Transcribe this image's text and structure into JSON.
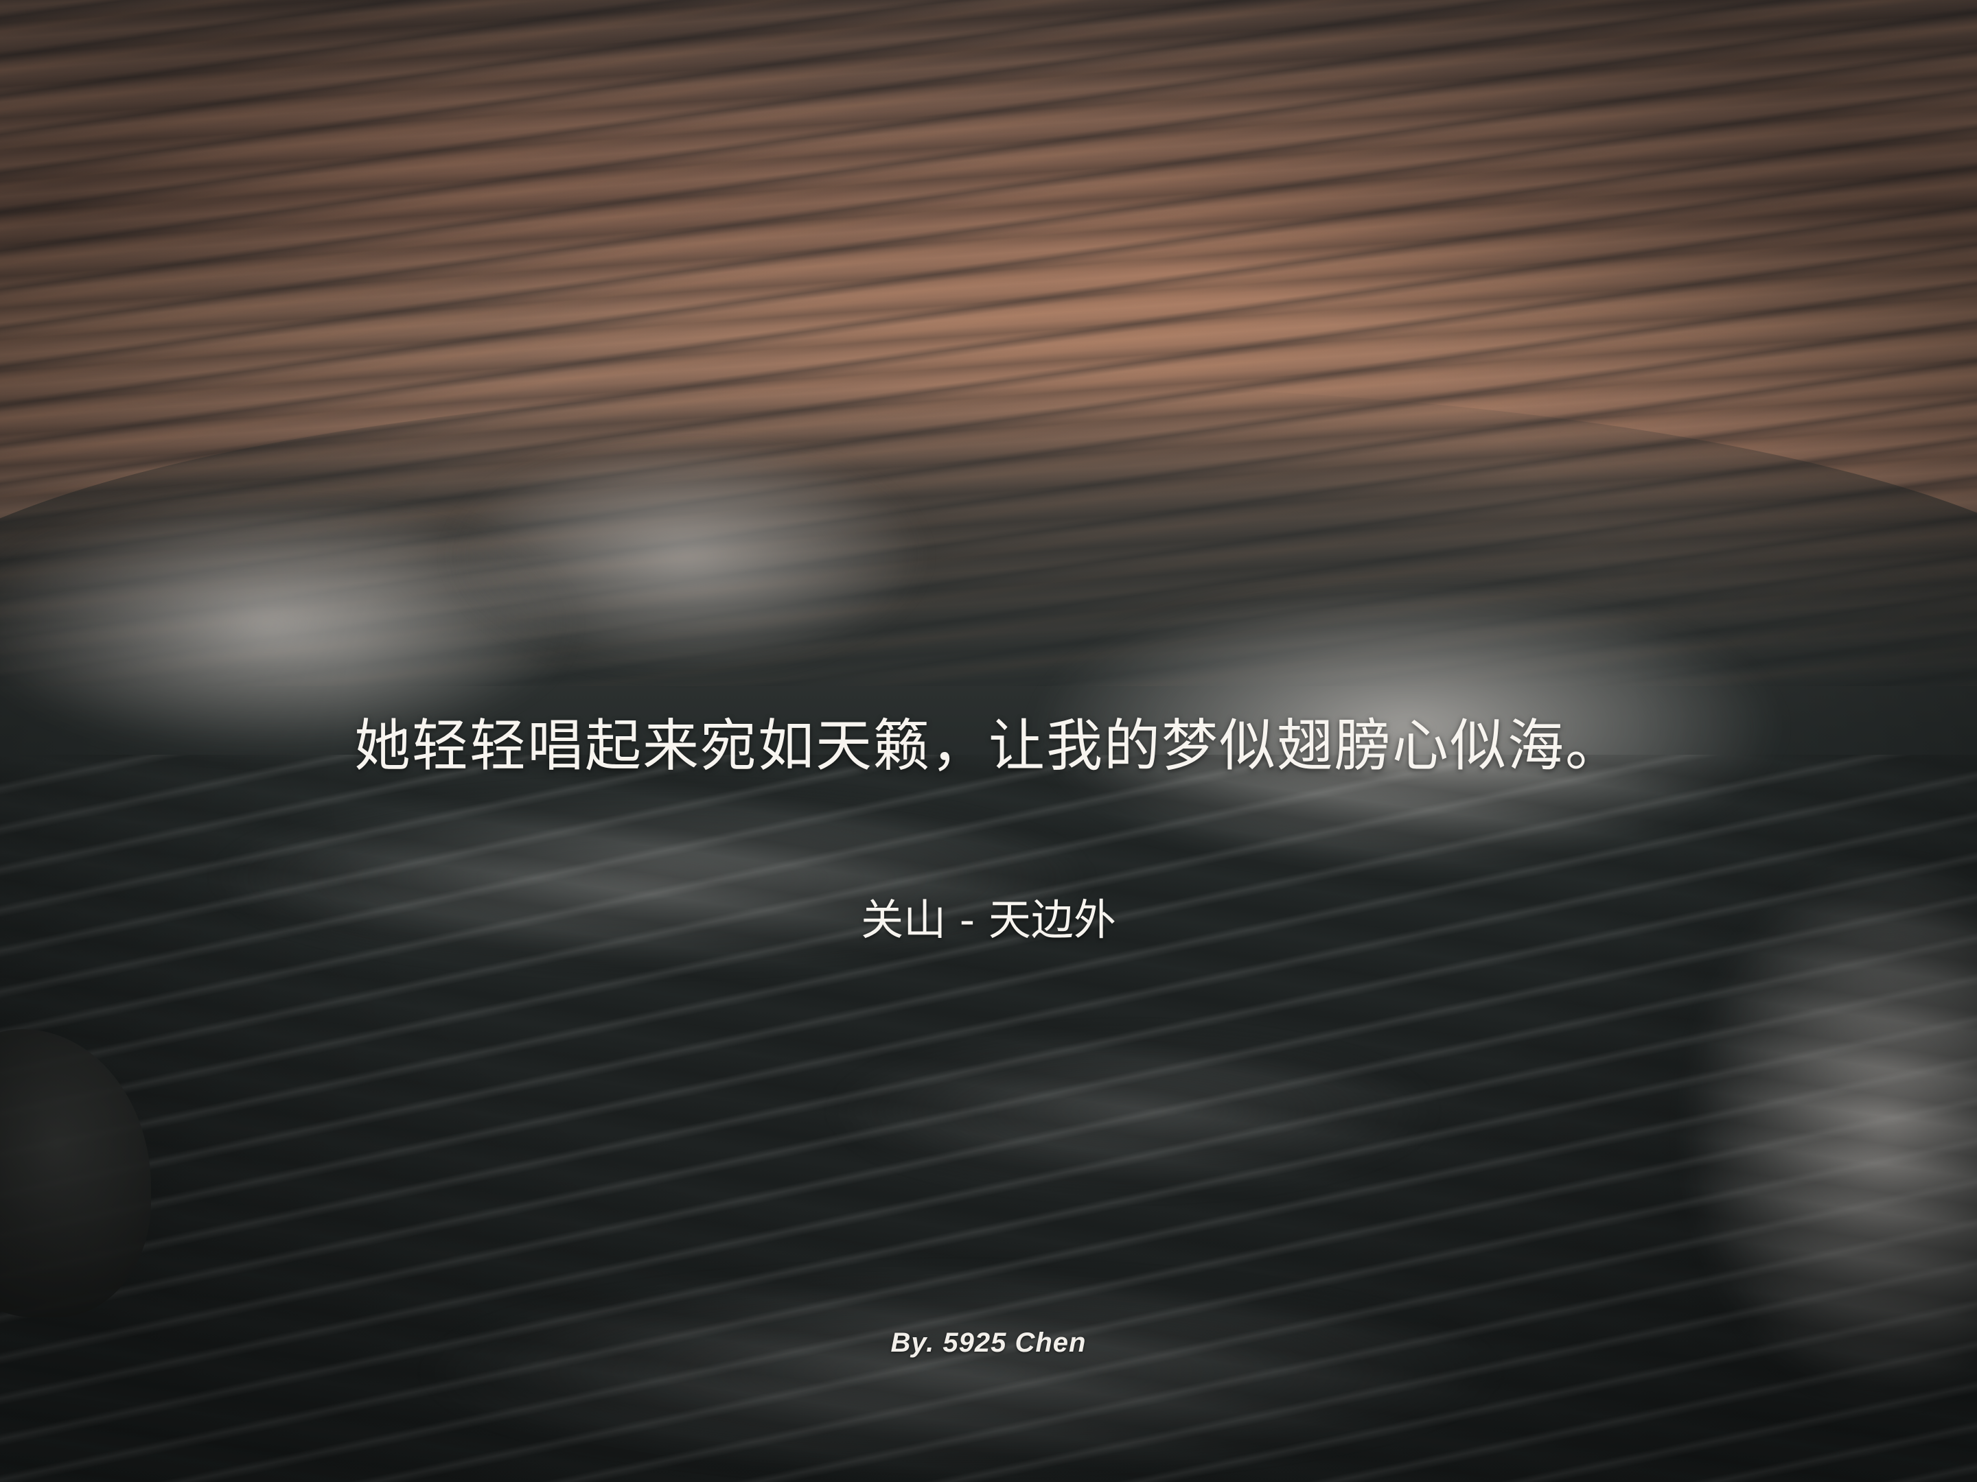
{
  "quote": {
    "text": "她轻轻唱起来宛如天籁，让我的梦似翅膀心似海。"
  },
  "attribution": {
    "text": "关山 - 天边外"
  },
  "credit": {
    "text": "By. 5925 Chen"
  },
  "colors": {
    "text": "#f7f4ef",
    "sky_reflection": "#8a6a58",
    "deep_water": "#262a28",
    "foam": "#dcd7d2"
  }
}
